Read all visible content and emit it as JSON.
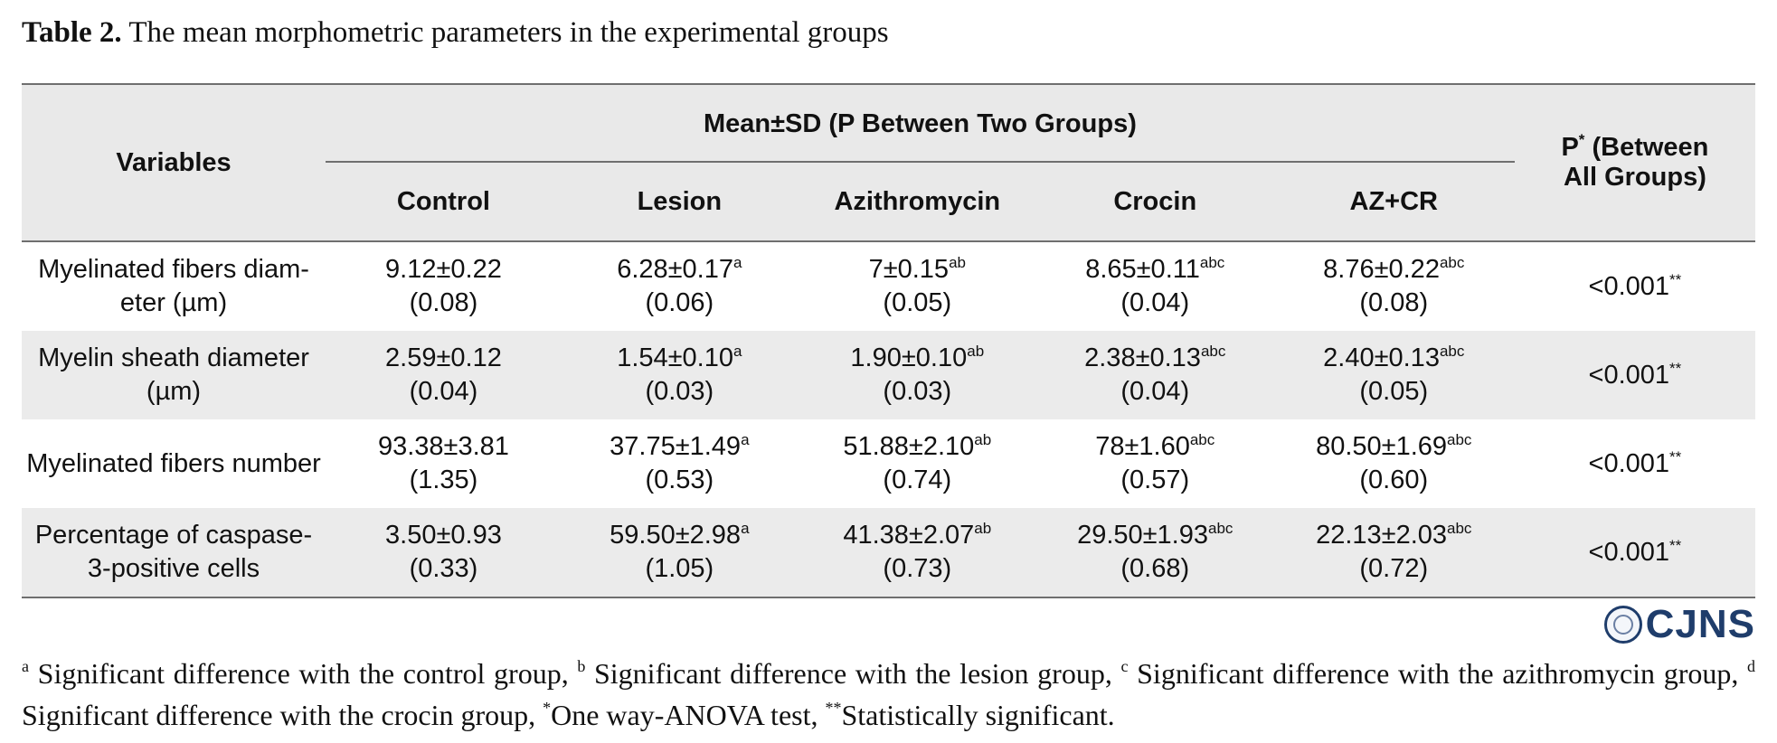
{
  "caption": {
    "label": "Table 2.",
    "text": "The mean morphometric parameters in the experimental groups"
  },
  "table": {
    "header": {
      "variables": "Variables",
      "group_span": "Mean±SD (P Between Two Groups)",
      "p_all_prefix": "P",
      "p_all_mark": "*",
      "p_all_line1": " (Between",
      "p_all_line2": "All Groups)",
      "groups": [
        "Control",
        "Lesion",
        "Azithromycin",
        "Crocin",
        "AZ+CR"
      ]
    },
    "rows": [
      {
        "label_line1": "Myelinated fibers diam-",
        "label_line2": "eter (µm)",
        "cells": [
          {
            "mean": "9.12±0.22",
            "sup": "",
            "p": "(0.08)"
          },
          {
            "mean": "6.28±0.17",
            "sup": "a",
            "p": "(0.06)"
          },
          {
            "mean": "7±0.15",
            "sup": "ab",
            "p": "(0.05)"
          },
          {
            "mean": "8.65±0.11",
            "sup": "abc",
            "p": "(0.04)"
          },
          {
            "mean": "8.76±0.22",
            "sup": "abc",
            "p": "(0.08)"
          }
        ],
        "p_all": "<0.001",
        "p_all_sup": "**"
      },
      {
        "label_line1": "Myelin sheath diameter",
        "label_line2": "(µm)",
        "cells": [
          {
            "mean": "2.59±0.12",
            "sup": "",
            "p": "(0.04)"
          },
          {
            "mean": "1.54±0.10",
            "sup": "a",
            "p": "(0.03)"
          },
          {
            "mean": "1.90±0.10",
            "sup": "ab",
            "p": "(0.03)"
          },
          {
            "mean": "2.38±0.13",
            "sup": "abc",
            "p": "(0.04)"
          },
          {
            "mean": "2.40±0.13",
            "sup": "abc",
            "p": "(0.05)"
          }
        ],
        "p_all": "<0.001",
        "p_all_sup": "**"
      },
      {
        "label_line1": "Myelinated fibers number",
        "label_line2": "",
        "cells": [
          {
            "mean": "93.38±3.81",
            "sup": "",
            "p": "(1.35)"
          },
          {
            "mean": "37.75±1.49",
            "sup": "a",
            "p": "(0.53)"
          },
          {
            "mean": "51.88±2.10",
            "sup": "ab",
            "p": "(0.74)"
          },
          {
            "mean": "78±1.60",
            "sup": "abc",
            "p": "(0.57)"
          },
          {
            "mean": "80.50±1.69",
            "sup": "abc",
            "p": "(0.60)"
          }
        ],
        "p_all": "<0.001",
        "p_all_sup": "**"
      },
      {
        "label_line1": "Percentage of caspase-",
        "label_line2": "3-positive cells",
        "cells": [
          {
            "mean": "3.50±0.93",
            "sup": "",
            "p": "(0.33)"
          },
          {
            "mean": "59.50±2.98",
            "sup": "a",
            "p": "(1.05)"
          },
          {
            "mean": "41.38±2.07",
            "sup": "ab",
            "p": "(0.73)"
          },
          {
            "mean": "29.50±1.93",
            "sup": "abc",
            "p": "(0.68)"
          },
          {
            "mean": "22.13±2.03",
            "sup": "abc",
            "p": "(0.72)"
          }
        ],
        "p_all": "<0.001",
        "p_all_sup": "**"
      }
    ]
  },
  "logo": {
    "text": "CJNS",
    "color": "#1f3d6b"
  },
  "footnote": {
    "a_mark": "a",
    "a_text": " Significant difference with the control group, ",
    "b_mark": "b",
    "b_text": " Significant difference with the lesion group, ",
    "c_mark": "c",
    "c_text": " Significant difference with the azithromycin group, ",
    "d_mark": "d",
    "d_text": " Significant difference with the crocin group, ",
    "star_mark": "*",
    "star_text": "One way-ANOVA test, ",
    "dstar_mark": "**",
    "dstar_text": "Statistically significant."
  },
  "colors": {
    "header_bg": "#e9e9e9",
    "shaded_row_bg": "#ebebeb",
    "rule": "#6f6f6f"
  }
}
